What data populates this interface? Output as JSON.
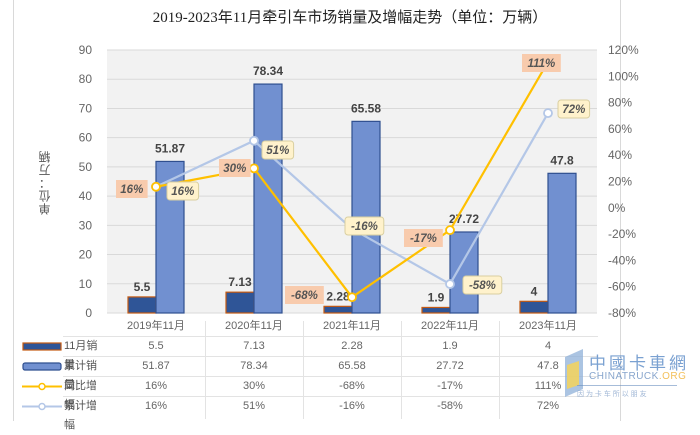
{
  "title": "2019-2023年11月牵引车市场销量及增幅走势（单位：万辆）",
  "y_axis_label": "单位：万辆",
  "left_axis_ticks": [
    "90",
    "80",
    "70",
    "60",
    "50",
    "40",
    "30",
    "20",
    "10",
    "0"
  ],
  "right_axis_ticks": [
    "120%",
    "100%",
    "80%",
    "60%",
    "40%",
    "20%",
    "0%",
    "-20%",
    "-40%",
    "-60%",
    "-80%"
  ],
  "categories": [
    "2019年11月",
    "2020年11月",
    "2021年11月",
    "2022年11月",
    "2023年11月"
  ],
  "table": {
    "rows": [
      {
        "label": "11月销量",
        "values": [
          "5.5",
          "7.13",
          "2.28",
          "1.9",
          "4"
        ]
      },
      {
        "label": "累计销量",
        "values": [
          "51.87",
          "78.34",
          "65.58",
          "27.72",
          "47.8"
        ]
      },
      {
        "label": "同比增幅",
        "values": [
          "16%",
          "30%",
          "-68%",
          "-17%",
          "111%"
        ]
      },
      {
        "label": "累计增幅",
        "values": [
          "16%",
          "51%",
          "-16%",
          "-58%",
          "72%"
        ]
      }
    ]
  },
  "bar_labels": {
    "monthly": [
      "5.5",
      "7.13",
      "2.28",
      "1.9",
      "4"
    ],
    "cumulative": [
      "51.87",
      "78.34",
      "65.58",
      "27.72",
      "47.8"
    ]
  },
  "line_labels": {
    "yoy": [
      "16%",
      "30%",
      "-68%",
      "-17%",
      "111%"
    ],
    "cum_growth": [
      "16%",
      "51%",
      "-16%",
      "-58%",
      "72%"
    ]
  },
  "watermark": {
    "cn": "中國卡車網",
    "en_main": "CHINATRUCK",
    "en_suffix": ".ORG",
    "slogan": "因 为 卡 车 所 以 朋 友"
  },
  "colors": {
    "monthly_bar": "#2f5597",
    "monthly_bar_border": "#c55a11",
    "cumulative_bar": "#7190d0",
    "cumulative_bar_border": "#2f4f8f",
    "yoy_line": "#ffc000",
    "cum_growth_line": "#b4c7e7",
    "yoy_label_bg": "#f8cbad",
    "cum_label_bg": "#fff2cc",
    "plot_bg": "#f2f2f2",
    "grid": "#d9d9d9"
  },
  "chart_data": {
    "type": "bar",
    "title": "2019-2023年11月牵引车市场销量及增幅走势（单位：万辆）",
    "categories": [
      "2019年11月",
      "2020年11月",
      "2021年11月",
      "2022年11月",
      "2023年11月"
    ],
    "series": [
      {
        "name": "11月销量",
        "type": "bar",
        "axis": "left",
        "values": [
          5.5,
          7.13,
          2.28,
          1.9,
          4
        ]
      },
      {
        "name": "累计销量",
        "type": "bar",
        "axis": "left",
        "values": [
          51.87,
          78.34,
          65.58,
          27.72,
          47.8
        ]
      },
      {
        "name": "同比增幅",
        "type": "line",
        "axis": "right",
        "unit": "%",
        "values": [
          16,
          30,
          -68,
          -17,
          111
        ]
      },
      {
        "name": "累计增幅",
        "type": "line",
        "axis": "right",
        "unit": "%",
        "values": [
          16,
          51,
          -16,
          -58,
          72
        ]
      }
    ],
    "xlabel": "",
    "ylabel": "单位：万辆",
    "ylim": [
      0,
      90
    ],
    "y2label": "",
    "y2lim": [
      -80,
      120
    ],
    "grid": true,
    "legend_position": "data-table-below"
  }
}
